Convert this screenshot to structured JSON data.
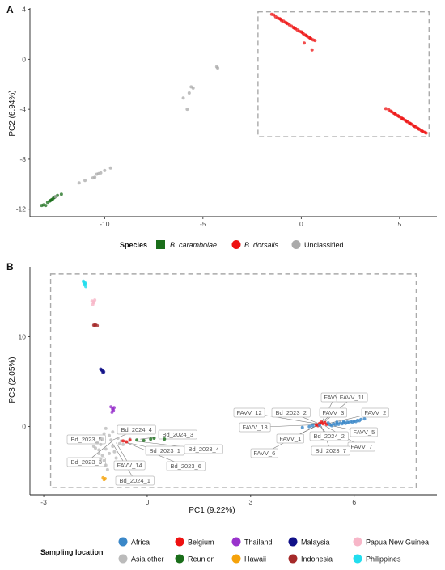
{
  "chart_data": [
    {
      "panel": "A",
      "type": "scatter",
      "xlabel": "",
      "ylabel": "PC2 (6.94%)",
      "xlim": [
        -13.8,
        6.9
      ],
      "ylim": [
        -12.6,
        4.1
      ],
      "x_ticks": [
        "-10",
        "-5",
        "0",
        "5"
      ],
      "y_ticks": [
        "4",
        "0",
        "-4",
        "-8",
        "-12"
      ],
      "legend": {
        "title": "Species",
        "entries": [
          {
            "label": "B. carambolae",
            "shape": "square",
            "color": "#1a6e1a"
          },
          {
            "label": "B. dorsalis",
            "shape": "circle",
            "color": "#ee1111"
          },
          {
            "label": "Unclassified",
            "shape": "circle",
            "color": "#aaaaaa"
          }
        ]
      },
      "highlight_box": {
        "x": [
          -2.2,
          6.5
        ],
        "y": [
          -6.2,
          3.8
        ]
      },
      "series": [
        {
          "name": "B. carambolae",
          "color": "#1a6e1a",
          "points": [
            [
              -13.2,
              -11.7
            ],
            [
              -13.1,
              -11.65
            ],
            [
              -13.0,
              -11.7
            ],
            [
              -12.9,
              -11.45
            ],
            [
              -12.8,
              -11.35
            ],
            [
              -12.7,
              -11.25
            ],
            [
              -12.75,
              -11.3
            ],
            [
              -12.6,
              -11.1
            ],
            [
              -12.65,
              -11.2
            ],
            [
              -12.5,
              -11.0
            ],
            [
              -12.55,
              -11.05
            ],
            [
              -12.4,
              -10.9
            ],
            [
              -12.2,
              -10.8
            ]
          ]
        },
        {
          "name": "B. dorsalis",
          "color": "#ee1111",
          "points": [
            [
              -1.5,
              3.6
            ],
            [
              -1.4,
              3.55
            ],
            [
              -1.3,
              3.4
            ],
            [
              -1.2,
              3.3
            ],
            [
              -1.1,
              3.25
            ],
            [
              -1.0,
              3.1
            ],
            [
              -0.9,
              3.05
            ],
            [
              -0.8,
              2.95
            ],
            [
              -0.7,
              2.85
            ],
            [
              -0.6,
              2.75
            ],
            [
              -0.5,
              2.65
            ],
            [
              -0.4,
              2.55
            ],
            [
              -0.3,
              2.45
            ],
            [
              -0.2,
              2.35
            ],
            [
              -0.1,
              2.25
            ],
            [
              0.0,
              2.2
            ],
            [
              0.1,
              2.05
            ],
            [
              0.2,
              1.95
            ],
            [
              0.3,
              1.85
            ],
            [
              0.4,
              1.75
            ],
            [
              0.5,
              1.65
            ],
            [
              0.6,
              1.55
            ],
            [
              0.7,
              1.5
            ],
            [
              -1.05,
              3.2
            ],
            [
              -0.75,
              2.9
            ],
            [
              -0.35,
              2.5
            ],
            [
              0.05,
              2.15
            ],
            [
              0.25,
              1.9
            ],
            [
              0.45,
              1.7
            ],
            [
              0.15,
              1.3
            ],
            [
              0.55,
              0.75
            ],
            [
              4.3,
              -3.95
            ],
            [
              4.45,
              -4.05
            ],
            [
              4.6,
              -4.2
            ],
            [
              4.7,
              -4.3
            ],
            [
              4.8,
              -4.4
            ],
            [
              4.9,
              -4.5
            ],
            [
              5.0,
              -4.6
            ],
            [
              5.1,
              -4.7
            ],
            [
              5.2,
              -4.8
            ],
            [
              5.3,
              -4.9
            ],
            [
              5.4,
              -5.0
            ],
            [
              5.5,
              -5.1
            ],
            [
              5.6,
              -5.2
            ],
            [
              5.7,
              -5.3
            ],
            [
              5.8,
              -5.4
            ],
            [
              5.9,
              -5.5
            ],
            [
              6.0,
              -5.6
            ],
            [
              6.1,
              -5.7
            ],
            [
              6.2,
              -5.8
            ],
            [
              6.3,
              -5.85
            ],
            [
              4.55,
              -4.15
            ],
            [
              4.75,
              -4.35
            ],
            [
              4.95,
              -4.55
            ],
            [
              5.15,
              -4.75
            ],
            [
              5.35,
              -4.95
            ],
            [
              5.55,
              -5.15
            ],
            [
              5.75,
              -5.35
            ],
            [
              5.95,
              -5.55
            ],
            [
              6.15,
              -5.75
            ],
            [
              6.35,
              -5.9
            ]
          ]
        },
        {
          "name": "Unclassified",
          "color": "#aaaaaa",
          "points": [
            [
              -12.5,
              -11.0
            ],
            [
              -11.3,
              -9.9
            ],
            [
              -11.0,
              -9.7
            ],
            [
              -10.6,
              -9.5
            ],
            [
              -10.5,
              -9.45
            ],
            [
              -10.4,
              -9.2
            ],
            [
              -10.3,
              -9.15
            ],
            [
              -10.2,
              -9.1
            ],
            [
              -10.0,
              -8.9
            ],
            [
              -9.7,
              -8.7
            ],
            [
              -6.0,
              -3.1
            ],
            [
              -5.8,
              -4.0
            ],
            [
              -5.7,
              -2.7
            ],
            [
              -5.6,
              -2.2
            ],
            [
              -5.5,
              -2.3
            ],
            [
              -4.3,
              -0.6
            ],
            [
              -4.25,
              -0.7
            ]
          ]
        }
      ]
    },
    {
      "panel": "B",
      "type": "scatter",
      "xlabel": "PC1 (9.22%)",
      "ylabel": "PC3 (2.05%)",
      "xlim": [
        -3.4,
        8.4
      ],
      "ylim": [
        -7.6,
        17.8
      ],
      "x_ticks": [
        "-3",
        "0",
        "3",
        "6"
      ],
      "y_ticks": [
        "10",
        "0"
      ],
      "legend": {
        "title": "Sampling location",
        "entries": [
          {
            "label": "Africa",
            "color": "#3a87c8"
          },
          {
            "label": "Belgium",
            "color": "#ee1111"
          },
          {
            "label": "Thailand",
            "color": "#9933cc"
          },
          {
            "label": "Malaysia",
            "color": "#101088"
          },
          {
            "label": "Papua New Guinea",
            "color": "#f7b6c8"
          },
          {
            "label": "Asia other",
            "color": "#bbbbbb"
          },
          {
            "label": "Reunion",
            "color": "#1a6e1a"
          },
          {
            "label": "Hawaii",
            "color": "#f5a20a"
          },
          {
            "label": "Indonesia",
            "color": "#a52a2a"
          },
          {
            "label": "Philippines",
            "color": "#22ddee"
          }
        ]
      },
      "highlight_box": {
        "x": [
          -2.8,
          7.8
        ],
        "y": [
          -6.8,
          17.0
        ]
      },
      "series": [
        {
          "name": "Philippines",
          "color": "#22ddee",
          "points": [
            [
              -1.85,
              16.2
            ],
            [
              -1.8,
              16.0
            ],
            [
              -1.82,
              15.8
            ],
            [
              -1.78,
              15.6
            ],
            [
              -1.84,
              16.1
            ],
            [
              -1.8,
              15.9
            ]
          ]
        },
        {
          "name": "Papua New Guinea",
          "color": "#f7b6c8",
          "points": [
            [
              -1.6,
              14.0
            ],
            [
              -1.55,
              13.8
            ],
            [
              -1.58,
              13.6
            ],
            [
              -1.52,
              14.1
            ],
            [
              -1.56,
              13.9
            ]
          ]
        },
        {
          "name": "Indonesia",
          "color": "#a52a2a",
          "points": [
            [
              -1.55,
              11.3
            ],
            [
              -1.5,
              11.35
            ],
            [
              -1.45,
              11.25
            ],
            [
              -1.52,
              11.3
            ]
          ]
        },
        {
          "name": "Malaysia",
          "color": "#101088",
          "points": [
            [
              -1.35,
              6.4
            ],
            [
              -1.3,
              6.2
            ],
            [
              -1.28,
              6.0
            ],
            [
              -1.32,
              6.3
            ],
            [
              -1.26,
              6.1
            ]
          ]
        },
        {
          "name": "Thailand",
          "color": "#9933cc",
          "points": [
            [
              -1.05,
              2.2
            ],
            [
              -1.0,
              2.0
            ],
            [
              -0.98,
              1.8
            ],
            [
              -1.02,
              1.6
            ],
            [
              -0.96,
              2.1
            ],
            [
              -1.0,
              1.9
            ]
          ]
        },
        {
          "name": "Hawaii",
          "color": "#f5a20a",
          "points": [
            [
              -1.28,
              -5.7
            ],
            [
              -1.25,
              -5.9
            ],
            [
              -1.22,
              -5.8
            ]
          ]
        },
        {
          "name": "Reunion",
          "color": "#1a6e1a",
          "points": [
            [
              -0.3,
              -1.5
            ],
            [
              -0.1,
              -1.55
            ],
            [
              0.1,
              -1.4
            ],
            [
              0.2,
              -1.3
            ],
            [
              0.5,
              -1.4
            ]
          ]
        },
        {
          "name": "Asia other",
          "color": "#bbbbbb",
          "points": [
            [
              -1.2,
              -0.2
            ],
            [
              -1.25,
              -0.8
            ],
            [
              -1.3,
              -1.4
            ],
            [
              -1.35,
              -2.0
            ],
            [
              -1.4,
              -2.6
            ],
            [
              -1.3,
              -3.2
            ],
            [
              -1.25,
              -3.8
            ],
            [
              -1.2,
              -4.3
            ],
            [
              -1.15,
              -4.8
            ],
            [
              -1.1,
              -1.0
            ],
            [
              -1.05,
              -1.5
            ],
            [
              -1.0,
              -2.2
            ],
            [
              -0.95,
              -2.8
            ],
            [
              -0.9,
              -3.5
            ],
            [
              -1.45,
              -1.8
            ],
            [
              -1.5,
              -2.4
            ],
            [
              -1.4,
              -3.0
            ],
            [
              -0.85,
              -1.3
            ],
            [
              -0.8,
              -1.9
            ],
            [
              -0.75,
              -1.6
            ],
            [
              -0.7,
              -2.0
            ],
            [
              -0.6,
              -1.7
            ],
            [
              -0.5,
              -1.4
            ],
            [
              -1.35,
              -3.6
            ],
            [
              -1.2,
              -2.5
            ],
            [
              -1.1,
              -3.0
            ],
            [
              -1.55,
              -2.2
            ],
            [
              -1.0,
              -0.6
            ]
          ]
        },
        {
          "name": "Belgium",
          "color": "#ee1111",
          "points": [
            [
              -0.7,
              -1.6
            ],
            [
              -0.6,
              -1.7
            ],
            [
              -0.5,
              -1.5
            ],
            [
              4.9,
              0.2
            ],
            [
              5.0,
              0.35
            ],
            [
              5.1,
              0.3
            ],
            [
              5.2,
              0.25
            ],
            [
              5.05,
              0.5
            ],
            [
              4.95,
              0.1
            ],
            [
              5.15,
              0.45
            ]
          ]
        },
        {
          "name": "Africa",
          "color": "#3a87c8",
          "points": [
            [
              4.5,
              -0.1
            ],
            [
              4.7,
              0.0
            ],
            [
              4.8,
              0.1
            ],
            [
              5.0,
              0.15
            ],
            [
              5.3,
              0.2
            ],
            [
              5.4,
              0.3
            ],
            [
              5.5,
              0.35
            ],
            [
              5.6,
              0.4
            ],
            [
              5.7,
              0.45
            ],
            [
              5.8,
              0.5
            ],
            [
              5.9,
              0.55
            ],
            [
              6.0,
              0.6
            ],
            [
              6.1,
              0.7
            ],
            [
              6.2,
              0.8
            ],
            [
              6.3,
              0.85
            ],
            [
              5.35,
              0.1
            ],
            [
              5.45,
              0.2
            ],
            [
              5.55,
              0.25
            ],
            [
              5.65,
              0.3
            ],
            [
              5.75,
              0.35
            ],
            [
              5.85,
              0.45
            ],
            [
              5.95,
              0.5
            ],
            [
              6.05,
              0.55
            ],
            [
              6.15,
              0.65
            ],
            [
              5.25,
              0.4
            ],
            [
              5.5,
              0.5
            ],
            [
              5.7,
              0.6
            ]
          ]
        }
      ],
      "labels": [
        {
          "text": "Bd_2024_4",
          "x": -1.0,
          "y": -1.5
        },
        {
          "text": "Bd_2023_5",
          "x": -1.2,
          "y": -1.4
        },
        {
          "text": "Bd_2023_3",
          "x": -1.0,
          "y": -1.6
        },
        {
          "text": "Bd_2024_3",
          "x": -0.2,
          "y": -1.4
        },
        {
          "text": "Bd_2023_1",
          "x": -0.7,
          "y": -1.7
        },
        {
          "text": "Bd_2023_4",
          "x": -0.4,
          "y": -1.6
        },
        {
          "text": "Bd_2023_6",
          "x": -0.6,
          "y": -1.8
        },
        {
          "text": "FAVV_14",
          "x": -0.9,
          "y": -1.8
        },
        {
          "text": "Bd_2024_1",
          "x": -1.0,
          "y": -1.9
        },
        {
          "text": "FAVV_4",
          "x": 5.05,
          "y": 0.4
        },
        {
          "text": "FAVV_11",
          "x": 5.1,
          "y": 0.35
        },
        {
          "text": "FAVV_12",
          "x": 4.95,
          "y": 0.3
        },
        {
          "text": "Bd_2023_2",
          "x": 5.0,
          "y": 0.3
        },
        {
          "text": "FAVV_3",
          "x": 5.0,
          "y": 0.25
        },
        {
          "text": "FAVV_2",
          "x": 5.2,
          "y": 0.3
        },
        {
          "text": "FAVV_13",
          "x": 4.9,
          "y": 0.2
        },
        {
          "text": "FAVV_5",
          "x": 5.2,
          "y": 0.2
        },
        {
          "text": "FAVV_1",
          "x": 4.95,
          "y": 0.15
        },
        {
          "text": "Bd_2024_2",
          "x": 5.0,
          "y": 0.1
        },
        {
          "text": "FAVV_7",
          "x": 5.15,
          "y": 0.1
        },
        {
          "text": "FAVV_6",
          "x": 4.9,
          "y": 0.1
        },
        {
          "text": "Bd_2023_7",
          "x": 5.05,
          "y": 0.05
        }
      ]
    }
  ]
}
